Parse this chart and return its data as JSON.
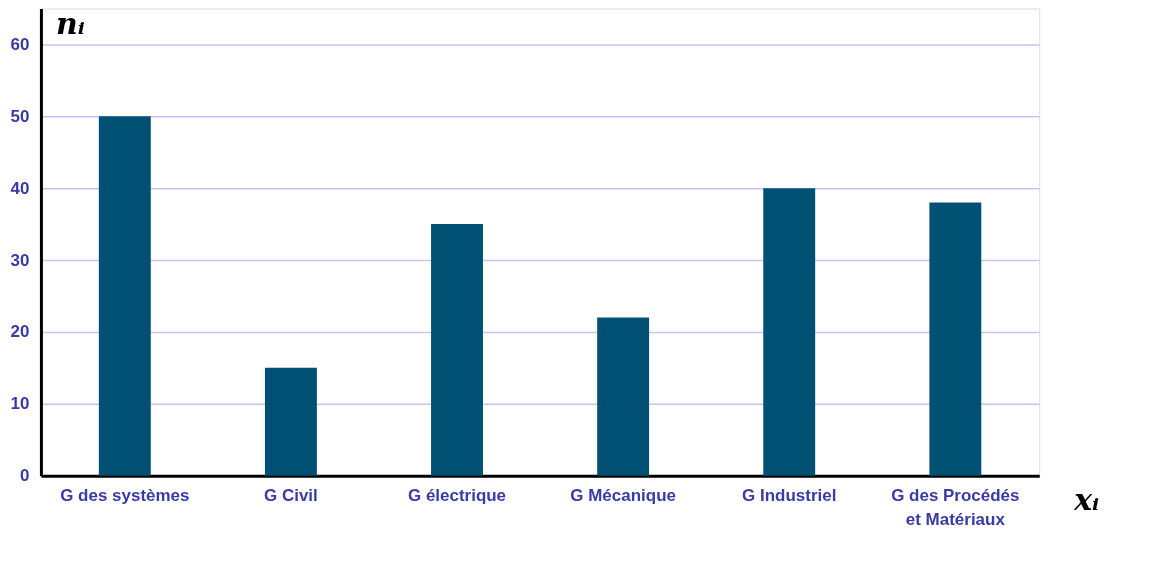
{
  "chart_data": {
    "type": "bar",
    "categories": [
      "G des systèmes",
      "G Civil",
      "G électrique",
      "G Mécanique",
      "G Industriel",
      "G des Procédés\net Matériaux"
    ],
    "values": [
      50,
      15,
      35,
      22,
      40,
      38
    ],
    "color": "#005073",
    "xlabel": "xᵢ",
    "ylabel": "nᵢ",
    "ylim": [
      0,
      65
    ],
    "yticks": [
      0,
      10,
      20,
      30,
      40,
      50,
      60
    ],
    "grid": "y"
  }
}
